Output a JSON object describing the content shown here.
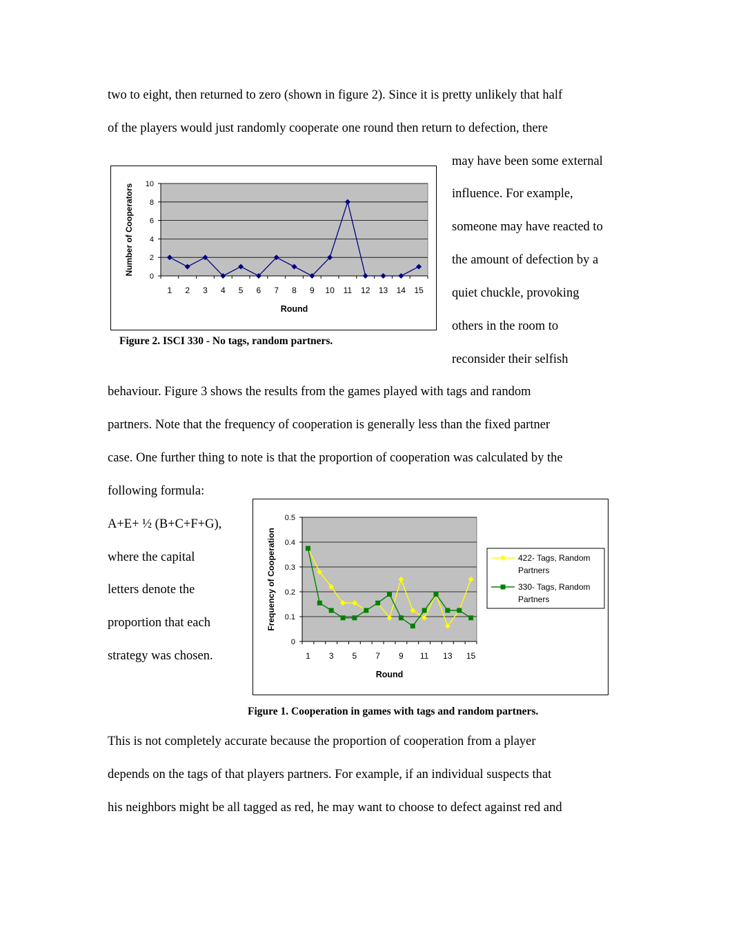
{
  "text_lines": {
    "l1": "two to eight, then returned to zero (shown in figure 2).  Since it is pretty unlikely that half",
    "l2": "of the players would just randomly cooperate one round then return to defection, there",
    "r1": "may have been some external",
    "r2": "influence.  For example,",
    "r3": "someone may have reacted to",
    "r4": "the amount of defection by a",
    "r5": "quiet chuckle, provoking",
    "r6": "others in the room to",
    "r7": "reconsider their selfish",
    "l3": "behaviour.  Figure 3 shows the results from the games played with tags and random",
    "l4": "partners.  Note that the frequency of cooperation is generally less than the fixed partner",
    "l5": "case.  One further thing to note is that the proportion of cooperation was calculated by the",
    "l6": "following formula:",
    "f1": "A+E+ ½ (B+C+F+G),",
    "f2": "where the capital",
    "f3": "letters denote the",
    "f4": "proportion that each",
    "f5": "strategy was chosen.",
    "l7": "This is not completely accurate because the proportion of cooperation from a player",
    "l8": "depends on the tags of that players partners.  For example, if an individual suspects that",
    "l9": "his neighbors might be all tagged as red, he may want to choose to defect against red and"
  },
  "figures": {
    "fig2_caption": "Figure 2. ISCI 330 - No tags, random partners.",
    "fig1_caption": "Figure 1.  Cooperation in games with tags and random partners."
  },
  "chart_data": [
    {
      "type": "line",
      "xlabel": "Round",
      "ylabel": "Number of Cooperators",
      "x": [
        1,
        2,
        3,
        4,
        5,
        6,
        7,
        8,
        9,
        10,
        11,
        12,
        13,
        14,
        15
      ],
      "yticks": [
        "0",
        "2",
        "4",
        "6",
        "8",
        "10"
      ],
      "ylim": [
        0,
        10
      ],
      "grid": true,
      "series": [
        {
          "values": [
            2,
            1,
            2,
            0,
            1,
            0,
            2,
            1,
            0,
            2,
            8,
            0,
            0,
            0,
            1
          ],
          "color": "#000080"
        }
      ]
    },
    {
      "type": "line",
      "xlabel": "Round",
      "ylabel": "Frequency of Cooperation",
      "x": [
        1,
        2,
        3,
        4,
        5,
        6,
        7,
        8,
        9,
        10,
        11,
        12,
        13,
        14,
        15
      ],
      "xticks": [
        "1",
        "3",
        "5",
        "7",
        "9",
        "11",
        "13",
        "15"
      ],
      "yticks": [
        "0",
        "0.1",
        "0.2",
        "0.3",
        "0.4",
        "0.5"
      ],
      "ylim": [
        0,
        0.5
      ],
      "grid": true,
      "legend": "right",
      "series": [
        {
          "name_line1": "422- Tags, Random",
          "name_line2": "Partners",
          "color": "#ffff00",
          "values": [
            0.375,
            0.28,
            0.22,
            0.155,
            0.155,
            0.125,
            0.155,
            0.095,
            0.25,
            0.125,
            0.095,
            0.19,
            0.062,
            0.125,
            0.25
          ]
        },
        {
          "name_line1": "330- Tags, Random",
          "name_line2": "Partners",
          "color": "#008000",
          "values": [
            0.375,
            0.155,
            0.125,
            0.095,
            0.095,
            0.125,
            0.155,
            0.19,
            0.095,
            0.062,
            0.125,
            0.19,
            0.125,
            0.125,
            0.095
          ]
        }
      ]
    }
  ]
}
